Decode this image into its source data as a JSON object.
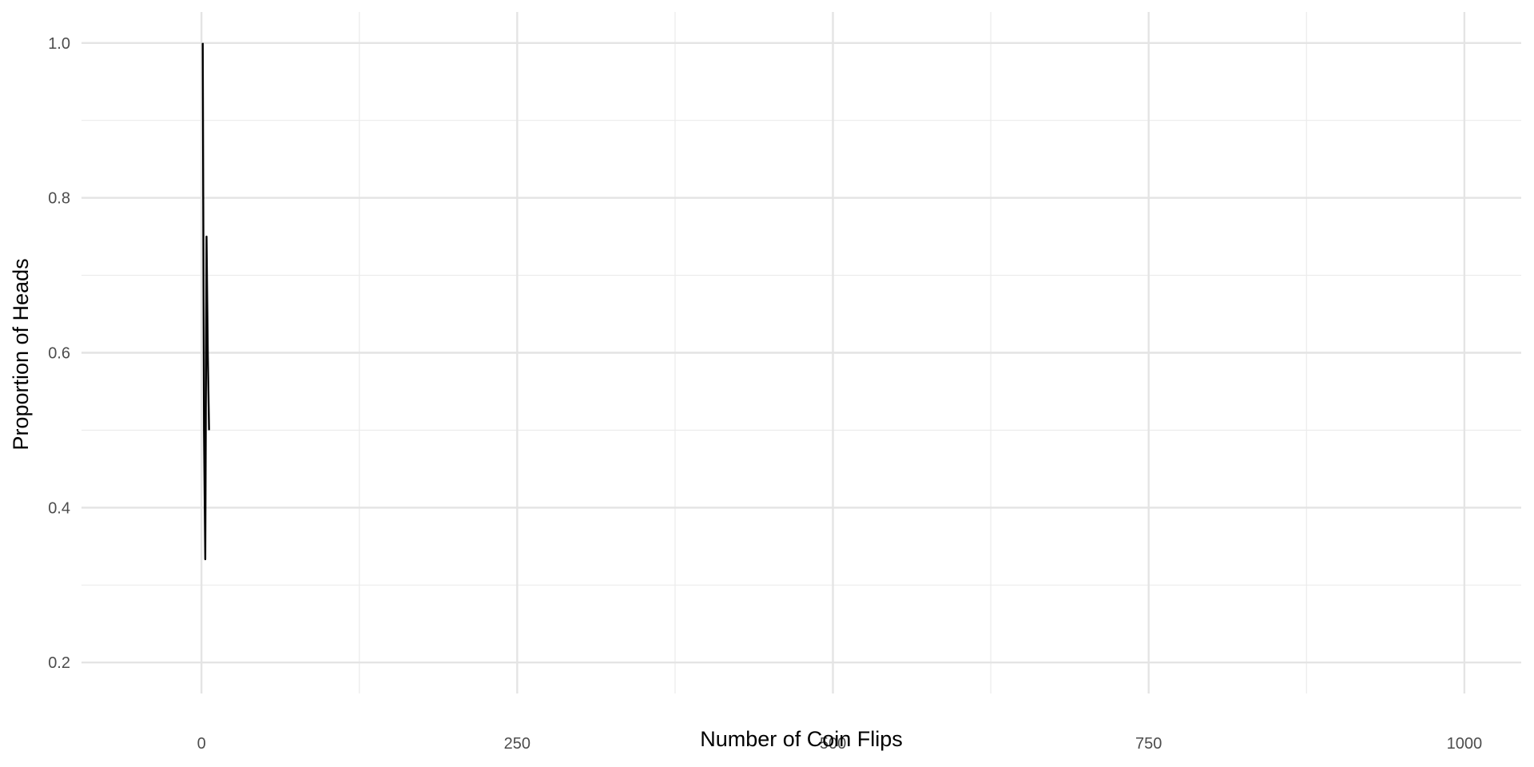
{
  "chart_data": {
    "type": "line",
    "title": "",
    "xlabel": "Number of Coin Flips",
    "ylabel": "Proportion of Heads",
    "xlim": [
      -95,
      1045
    ],
    "ylim": [
      0.2,
      1.0
    ],
    "x_ticks": [
      0,
      250,
      500,
      750,
      1000
    ],
    "x_tick_labels": [
      "0",
      "250",
      "500",
      "750",
      "1000"
    ],
    "y_ticks": [
      0.2,
      0.4,
      0.6,
      0.8,
      1.0
    ],
    "y_tick_labels": [
      "0.2",
      "0.4",
      "0.6",
      "0.8",
      "1.0"
    ],
    "grid": true,
    "legend": "none",
    "series": [
      {
        "color": "#000000",
        "x": [
          1,
          2,
          3,
          4,
          5,
          6
        ],
        "y": [
          1.0,
          0.5,
          0.3333,
          0.75,
          0.6,
          0.5
        ]
      }
    ]
  }
}
